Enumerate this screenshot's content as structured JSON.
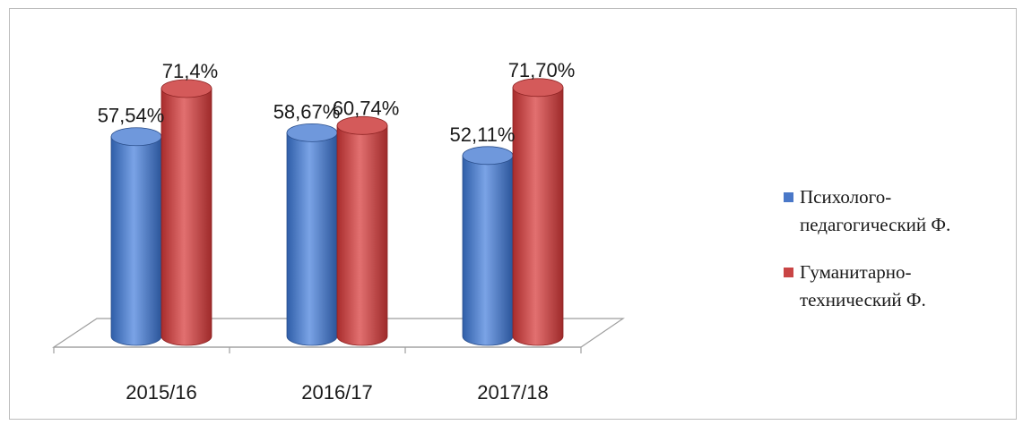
{
  "chart_data": {
    "type": "bar",
    "categories": [
      "2015/16",
      "2016/17",
      "2017/18"
    ],
    "series": [
      {
        "name": "Психолого-\nпедагогический Ф.",
        "values": [
          57.54,
          58.67,
          52.11
        ],
        "labels": [
          "57,54%",
          "58,67%",
          "52,11%"
        ],
        "color": "#4a78c8"
      },
      {
        "name": "Гуманитарно-\nтехнический Ф.",
        "values": [
          71.4,
          60.74,
          71.7
        ],
        "labels": [
          "71,4%",
          "60,74%",
          "71,70%"
        ],
        "color": "#c94545"
      }
    ],
    "ylim": [
      0,
      100
    ],
    "grid": false,
    "legend": "right"
  }
}
